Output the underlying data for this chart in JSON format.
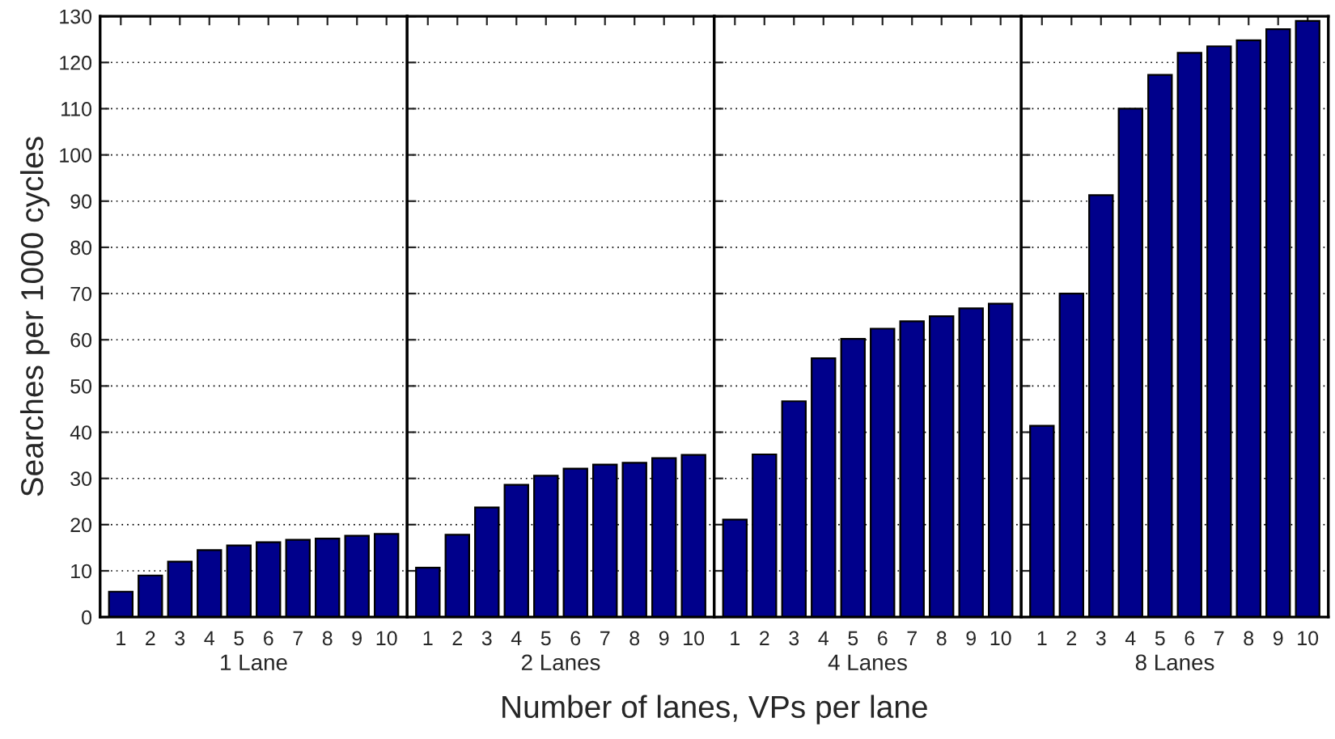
{
  "chart_data": [
    {
      "type": "bar",
      "categories": [
        "1",
        "2",
        "3",
        "4",
        "5",
        "6",
        "7",
        "8",
        "9",
        "10"
      ],
      "values": [
        5.5,
        9,
        12,
        14.5,
        15.5,
        16.2,
        16.7,
        17,
        17.6,
        18
      ],
      "color": "#00008b",
      "xlabel": "1 Lane",
      "ylabel": "Searches per 1000 cycles",
      "ylim": [
        0,
        130
      ],
      "yticks": [
        0,
        10,
        20,
        30,
        40,
        50,
        60,
        70,
        80,
        90,
        100,
        110,
        120,
        130
      ],
      "grid": "y",
      "annotations": [
        "Number of lanes, VPs per lane"
      ]
    },
    {
      "type": "bar",
      "categories": [
        "1",
        "2",
        "3",
        "4",
        "5",
        "6",
        "7",
        "8",
        "9",
        "10"
      ],
      "values": [
        10.7,
        17.8,
        23.7,
        28.6,
        30.6,
        32.1,
        33,
        33.4,
        34.4,
        35.1
      ],
      "color": "#00008b",
      "xlabel": "2 Lanes",
      "ylim": [
        0,
        130
      ],
      "yticks": [
        0,
        10,
        20,
        30,
        40,
        50,
        60,
        70,
        80,
        90,
        100,
        110,
        120,
        130
      ],
      "grid": "y",
      "tick_labels": "x"
    },
    {
      "type": "bar",
      "categories": [
        "1",
        "2",
        "3",
        "4",
        "5",
        "6",
        "7",
        "8",
        "9",
        "10"
      ],
      "values": [
        21.1,
        35.2,
        46.7,
        56,
        60.2,
        62.4,
        64,
        65.1,
        66.8,
        67.8
      ],
      "color": "#00008b",
      "xlabel": "4 Lanes",
      "ylim": [
        0,
        130
      ],
      "yticks": [
        0,
        10,
        20,
        30,
        40,
        50,
        60,
        70,
        80,
        90,
        100,
        110,
        120,
        130
      ],
      "grid": "y",
      "tick_labels": "x"
    },
    {
      "type": "bar",
      "categories": [
        "1",
        "2",
        "3",
        "4",
        "5",
        "6",
        "7",
        "8",
        "9",
        "10"
      ],
      "values": [
        41.4,
        70,
        91.3,
        110,
        117.3,
        122.1,
        123.5,
        124.8,
        127.2,
        129
      ],
      "color": "#00008b",
      "xlabel": "8 Lanes",
      "ylim": [
        0,
        130
      ],
      "yticks": [
        0,
        10,
        20,
        30,
        40,
        50,
        60,
        70,
        80,
        90,
        100,
        110,
        120,
        130
      ],
      "grid": "y",
      "tick_labels": "x"
    }
  ]
}
